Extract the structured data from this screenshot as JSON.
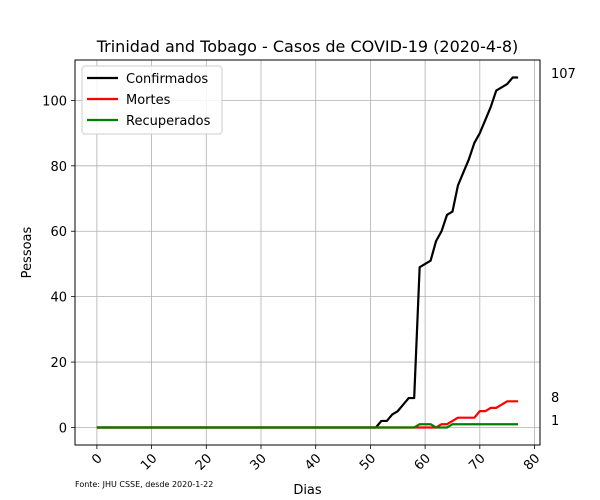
{
  "chart_data": {
    "type": "line",
    "title": "Trinidad and Tobago - Casos de COVID-19 (2020-4-8)",
    "xlabel": "Dias",
    "ylabel": "Pessoas",
    "xlim": [
      -4,
      81
    ],
    "ylim": [
      -5.35,
      112.35
    ],
    "xticks": [
      0,
      10,
      20,
      30,
      40,
      50,
      60,
      70,
      80
    ],
    "yticks": [
      0,
      20,
      40,
      60,
      80,
      100
    ],
    "grid": true,
    "legend_position": "top-left",
    "source": "Fonte: JHU CSSE, desde 2020-1-22",
    "end_labels": [
      {
        "series": "Confirmados",
        "value": 107,
        "text": "107"
      },
      {
        "series": "Mortes",
        "value": 8,
        "text": "8"
      },
      {
        "series": "Recuperados",
        "value": 1,
        "text": "1"
      }
    ],
    "series": [
      {
        "name": "Confirmados",
        "color": "#000000",
        "points": [
          [
            0,
            0
          ],
          [
            51,
            0
          ],
          [
            52,
            2
          ],
          [
            53,
            2
          ],
          [
            54,
            4
          ],
          [
            55,
            5
          ],
          [
            56,
            7
          ],
          [
            57,
            9
          ],
          [
            58,
            9
          ],
          [
            59,
            49
          ],
          [
            60,
            50
          ],
          [
            61,
            51
          ],
          [
            62,
            57
          ],
          [
            63,
            60
          ],
          [
            64,
            65
          ],
          [
            65,
            66
          ],
          [
            66,
            74
          ],
          [
            67,
            78
          ],
          [
            68,
            82
          ],
          [
            69,
            87
          ],
          [
            70,
            90
          ],
          [
            71,
            94
          ],
          [
            72,
            98
          ],
          [
            73,
            103
          ],
          [
            74,
            104
          ],
          [
            75,
            105
          ],
          [
            76,
            107
          ],
          [
            77,
            107
          ]
        ]
      },
      {
        "name": "Mortes",
        "color": "#ff0000",
        "points": [
          [
            0,
            0
          ],
          [
            62,
            0
          ],
          [
            63,
            1
          ],
          [
            64,
            1
          ],
          [
            65,
            2
          ],
          [
            66,
            3
          ],
          [
            67,
            3
          ],
          [
            68,
            3
          ],
          [
            69,
            3
          ],
          [
            70,
            5
          ],
          [
            71,
            5
          ],
          [
            72,
            6
          ],
          [
            73,
            6
          ],
          [
            74,
            7
          ],
          [
            75,
            8
          ],
          [
            76,
            8
          ],
          [
            77,
            8
          ]
        ]
      },
      {
        "name": "Recuperados",
        "color": "#008000",
        "points": [
          [
            0,
            0
          ],
          [
            58,
            0
          ],
          [
            59,
            1
          ],
          [
            60,
            1
          ],
          [
            61,
            1
          ],
          [
            62,
            0
          ],
          [
            63,
            0
          ],
          [
            64,
            0
          ],
          [
            65,
            1
          ],
          [
            66,
            1
          ],
          [
            77,
            1
          ]
        ]
      }
    ]
  }
}
